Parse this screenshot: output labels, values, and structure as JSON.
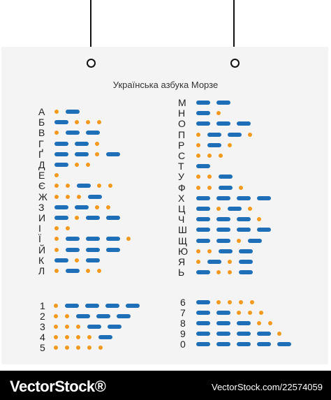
{
  "title": "Українська азбука Морзе",
  "columns": [
    {
      "name": "letters-left",
      "rows": [
        {
          "char": "А",
          "code": ".-"
        },
        {
          "char": "Б",
          "code": "-..."
        },
        {
          "char": "В",
          "code": ".--"
        },
        {
          "char": "Г",
          "code": "--."
        },
        {
          "char": "Ґ",
          "code": "--.-"
        },
        {
          "char": "Д",
          "code": "-.."
        },
        {
          "char": "Е",
          "code": "."
        },
        {
          "char": "Є",
          "code": "..-.."
        },
        {
          "char": "Ж",
          "code": "...-"
        },
        {
          "char": "З",
          "code": "--.."
        },
        {
          "char": "И",
          "code": "-.--"
        },
        {
          "char": "І",
          "code": ".."
        },
        {
          "char": "Ї",
          "code": ".---."
        },
        {
          "char": "Й",
          "code": ".---"
        },
        {
          "char": "К",
          "code": "-.-"
        },
        {
          "char": "Л",
          "code": ".-.."
        }
      ]
    },
    {
      "name": "letters-right",
      "rows": [
        {
          "char": "М",
          "code": "--"
        },
        {
          "char": "Н",
          "code": "-."
        },
        {
          "char": "О",
          "code": "---"
        },
        {
          "char": "П",
          "code": ".--."
        },
        {
          "char": "Р",
          "code": ".-."
        },
        {
          "char": "С",
          "code": "..."
        },
        {
          "char": "Т",
          "code": "-"
        },
        {
          "char": "У",
          "code": "..-"
        },
        {
          "char": "Ф",
          "code": "..-."
        },
        {
          "char": "Х",
          "code": "----"
        },
        {
          "char": "Ц",
          "code": "-.-."
        },
        {
          "char": "Ч",
          "code": "---."
        },
        {
          "char": "Ш",
          "code": "----"
        },
        {
          "char": "Щ",
          "code": "--.-"
        },
        {
          "char": "Ю",
          "code": "..--"
        },
        {
          "char": "Я",
          "code": ".-.-"
        },
        {
          "char": "Ь",
          "code": "-..-"
        }
      ]
    },
    {
      "name": "digits-left",
      "rows": [
        {
          "char": "1",
          "code": ".----"
        },
        {
          "char": "2",
          "code": "..---"
        },
        {
          "char": "3",
          "code": "...--"
        },
        {
          "char": "4",
          "code": "....-"
        },
        {
          "char": "5",
          "code": "....."
        }
      ]
    },
    {
      "name": "digits-right",
      "rows": [
        {
          "char": "6",
          "code": "-...."
        },
        {
          "char": "7",
          "code": "--..."
        },
        {
          "char": "8",
          "code": "---.."
        },
        {
          "char": "9",
          "code": "----."
        },
        {
          "char": "0",
          "code": "-----"
        }
      ]
    }
  ],
  "colors": {
    "dot": "#f39a1e",
    "dash": "#1f6fb8"
  },
  "footer": {
    "watermark": "VectorStock®",
    "url": "VectorStock.com/22574059"
  }
}
